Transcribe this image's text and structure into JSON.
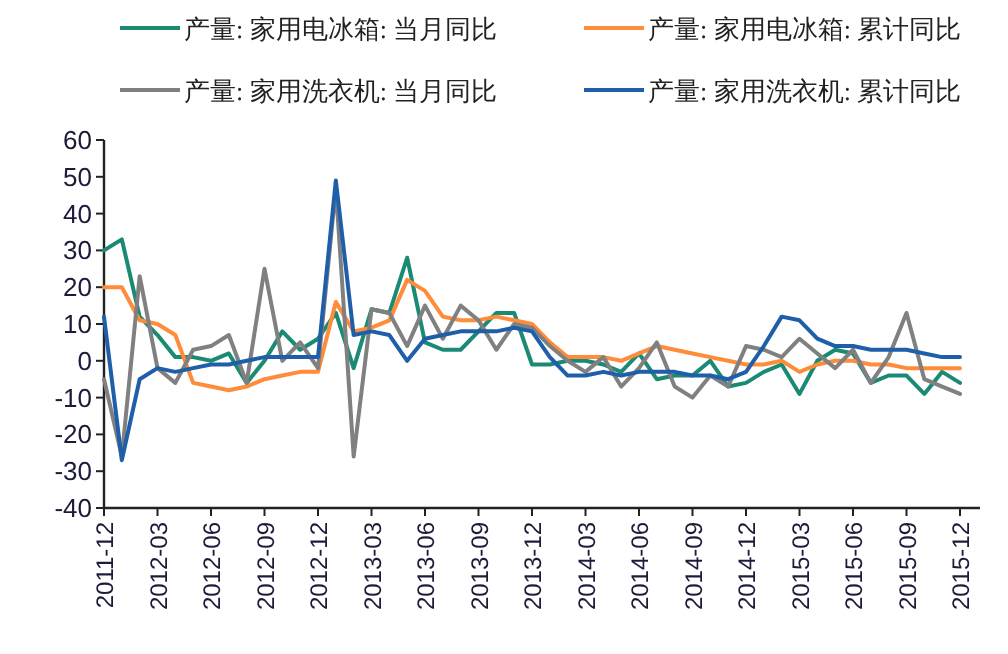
{
  "chart_data": {
    "type": "line",
    "categories": [
      "2011-12",
      null,
      null,
      "2012-03",
      null,
      null,
      "2012-06",
      null,
      null,
      "2012-09",
      null,
      null,
      "2012-12",
      null,
      null,
      "2013-03",
      null,
      null,
      "2013-06",
      null,
      null,
      "2013-09",
      null,
      null,
      "2013-12",
      null,
      null,
      "2014-03",
      null,
      null,
      "2014-06",
      null,
      null,
      "2014-09",
      null,
      null,
      "2014-12",
      null,
      null,
      "2015-03",
      null,
      null,
      "2015-06",
      null,
      null,
      "2015-09",
      null,
      null,
      "2015-12"
    ],
    "series": [
      {
        "name": "产量: 家用电冰箱: 当月同比",
        "color": "#1a8a74",
        "values": [
          30,
          33,
          12,
          7,
          1,
          1,
          0,
          2,
          -6,
          0,
          8,
          3,
          6,
          13,
          -2,
          14,
          13,
          28,
          5,
          3,
          3,
          8,
          13,
          13,
          -1,
          -1,
          0,
          0,
          -1,
          -3,
          2,
          -5,
          -4,
          -4,
          0,
          -7,
          -6,
          -3,
          -1,
          -9,
          0,
          3,
          2,
          -6,
          -4,
          -4,
          -9,
          -3,
          -6
        ]
      },
      {
        "name": "产量: 家用电冰箱: 累计同比",
        "color": "#ff8c3a",
        "values": [
          20,
          20,
          11,
          10,
          7,
          -6,
          -7,
          -8,
          -7,
          -5,
          -4,
          -3,
          -3,
          16,
          8,
          9,
          11,
          22,
          19,
          12,
          11,
          11,
          12,
          11,
          10,
          5,
          1,
          1,
          1,
          0,
          2,
          4,
          3,
          2,
          1,
          0,
          -1,
          -1,
          0,
          -3,
          -1,
          0,
          0,
          -1,
          -1,
          -2,
          -2,
          -2,
          -2
        ]
      },
      {
        "name": "产量: 家用洗衣机: 当月同比",
        "color": "#808080",
        "values": [
          -5,
          -26,
          23,
          -2,
          -6,
          3,
          4,
          7,
          -6,
          25,
          0,
          5,
          -2,
          47,
          -26,
          14,
          13,
          4,
          15,
          6,
          15,
          11,
          3,
          10,
          9,
          4,
          0,
          -3,
          1,
          -7,
          -2,
          5,
          -7,
          -10,
          -4,
          -7,
          4,
          3,
          1,
          6,
          2,
          -2,
          3,
          -6,
          1,
          13,
          -5,
          -7,
          -9
        ]
      },
      {
        "name": "产量: 家用洗衣机: 累计同比",
        "color": "#1f5ea8",
        "values": [
          12,
          -27,
          -5,
          -2,
          -3,
          -2,
          -1,
          -1,
          0,
          1,
          1,
          1,
          1,
          49,
          7,
          8,
          7,
          0,
          6,
          7,
          8,
          8,
          8,
          9,
          8,
          1,
          -4,
          -4,
          -3,
          -4,
          -3,
          -3,
          -3,
          -4,
          -4,
          -5,
          -3,
          4,
          12,
          11,
          6,
          4,
          4,
          3,
          3,
          3,
          2,
          1,
          1
        ]
      }
    ],
    "ylim": [
      -40,
      60
    ],
    "yticks": [
      -40,
      -30,
      -20,
      -10,
      0,
      10,
      20,
      30,
      40,
      50,
      60
    ],
    "legend": "top",
    "grid": false
  }
}
